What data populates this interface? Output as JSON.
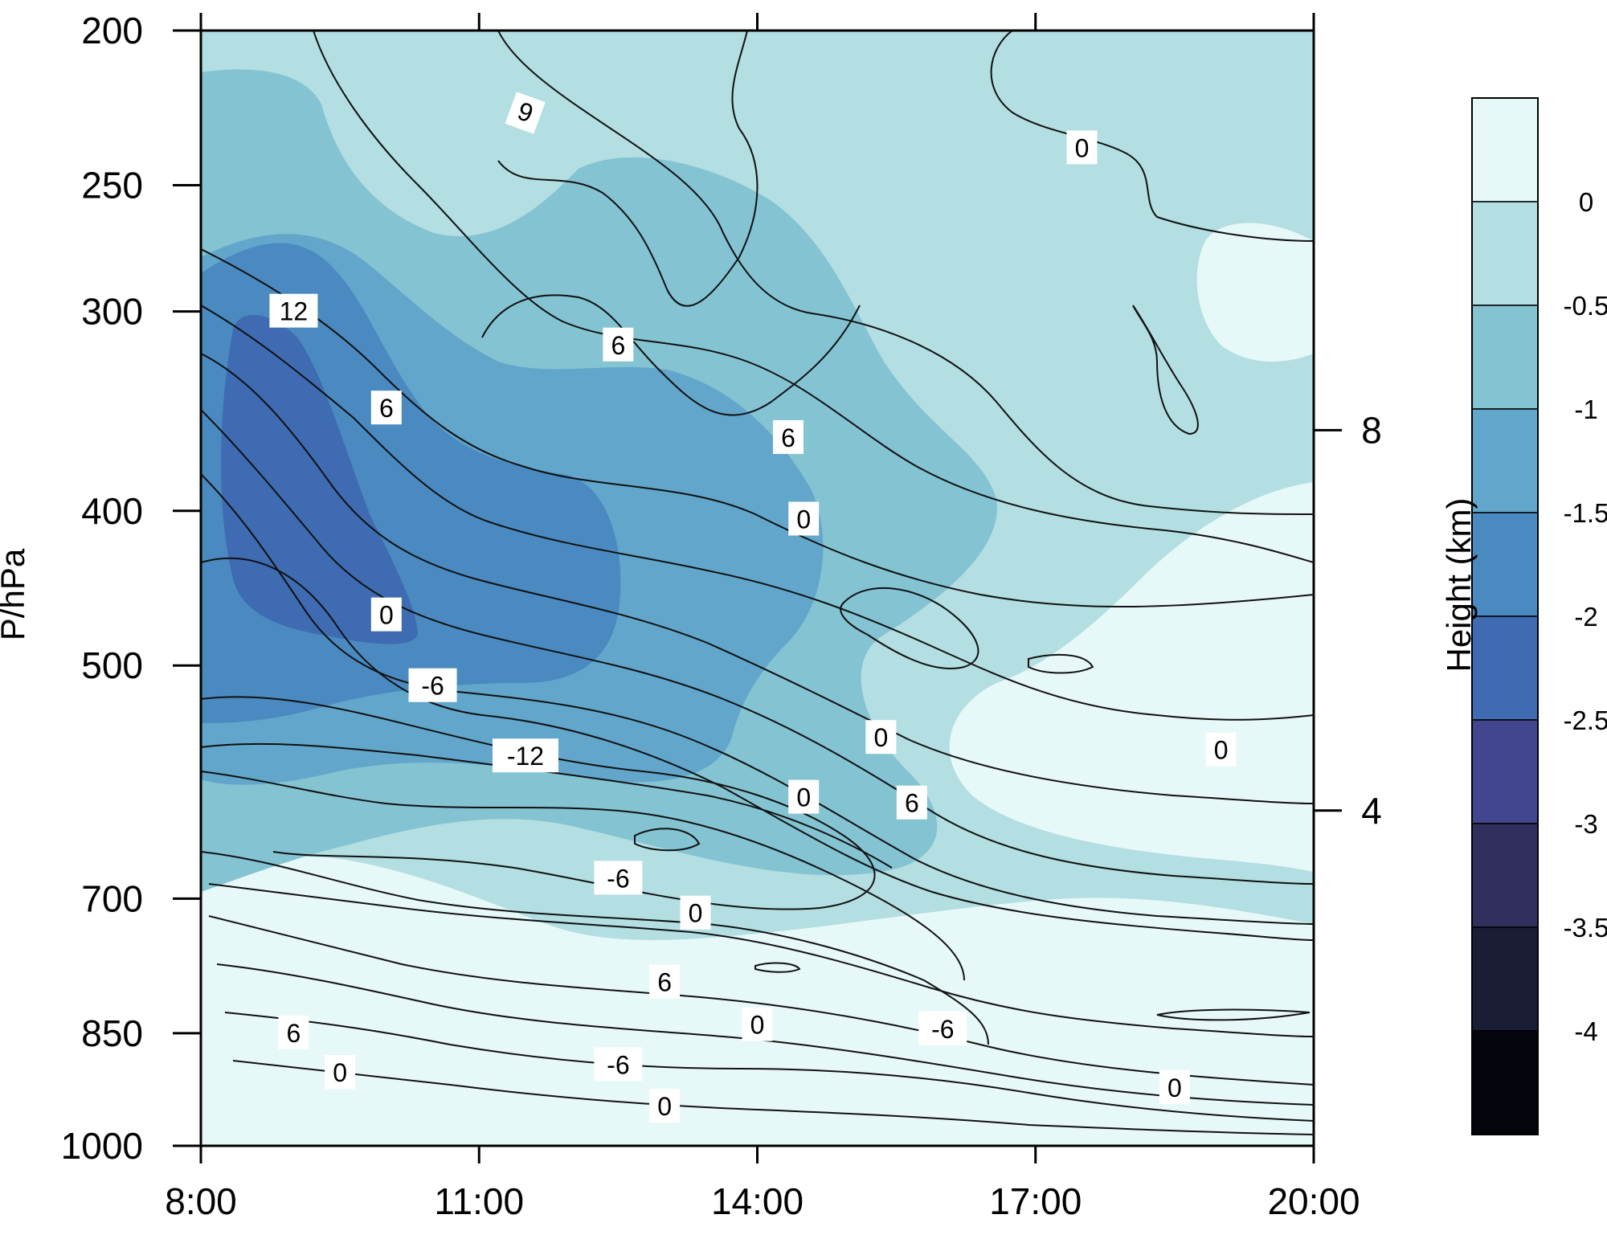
{
  "chart_data": {
    "type": "contour",
    "description_fields": {
      "filled_variable": "height anomaly",
      "contour_variable": "line contours labeled"
    },
    "x": {
      "label": "",
      "ticks": [
        "8:00",
        "11:00",
        "14:00",
        "17:00",
        "20:00"
      ],
      "range": [
        "8:00",
        "20:00"
      ]
    },
    "y_left": {
      "label": "P/hPa",
      "ticks": [
        200,
        250,
        300,
        400,
        500,
        700,
        850,
        1000
      ],
      "range": [
        200,
        1000
      ],
      "scale": "log-pressure"
    },
    "y_right": {
      "label": "",
      "ticks": [
        8,
        4
      ]
    },
    "colorbar": {
      "label": "Height (km)",
      "levels": [
        0,
        -0.5,
        -1,
        -1.5,
        -2,
        -2.5,
        -3,
        -3.5,
        -4
      ],
      "colors": [
        "#e6f8f8",
        "#b3dee2",
        "#84c3d2",
        "#62a6cb",
        "#4a8ac0",
        "#3e6bb1",
        "#41468f",
        "#302f5e",
        "#1b1c36",
        "#04050c"
      ]
    },
    "filled_regions": [
      {
        "level": 0,
        "region": "lower-left bands near 700–1000 hPa, right side 500–650 hPa"
      },
      {
        "level": -0.5,
        "region": "upper-right 200–500 hPa, middle 600–700 hPa"
      },
      {
        "level": -1,
        "region": "upper-left to center 200–500 hPa"
      },
      {
        "level": -1.5,
        "region": "8:00–15:00, 280–650 hPa"
      },
      {
        "level": -2,
        "region": "8:00–13:00, 300–550 hPa"
      },
      {
        "level": -2.5,
        "region": "8:30–10:30, 330–470 hPa"
      }
    ],
    "contour_labels": [
      {
        "text": "6",
        "x": "11:30",
        "y": 225,
        "rotation": 200
      },
      {
        "text": "0",
        "x": "17:30",
        "y": 237
      },
      {
        "text": "12",
        "x": "9:00",
        "y": 300
      },
      {
        "text": "6",
        "x": "12:30",
        "y": 315
      },
      {
        "text": "6",
        "x": "10:00",
        "y": 345
      },
      {
        "text": "6",
        "x": "14:20",
        "y": 360
      },
      {
        "text": "0",
        "x": "14:30",
        "y": 405
      },
      {
        "text": "0",
        "x": "10:00",
        "y": 465
      },
      {
        "text": "-6",
        "x": "10:30",
        "y": 515
      },
      {
        "text": "-12",
        "x": "11:30",
        "y": 570
      },
      {
        "text": "0",
        "x": "15:20",
        "y": 555
      },
      {
        "text": "0",
        "x": "19:00",
        "y": 565
      },
      {
        "text": "6",
        "x": "15:40",
        "y": 610
      },
      {
        "text": "0",
        "x": "14:30",
        "y": 605
      },
      {
        "text": "-6",
        "x": "12:30",
        "y": 680
      },
      {
        "text": "0",
        "x": "13:20",
        "y": 715
      },
      {
        "text": "6",
        "x": "13:00",
        "y": 790
      },
      {
        "text": "0",
        "x": "14:00",
        "y": 840
      },
      {
        "text": "-6",
        "x": "16:00",
        "y": 845
      },
      {
        "text": "6",
        "x": "9:00",
        "y": 850
      },
      {
        "text": "0",
        "x": "9:30",
        "y": 900
      },
      {
        "text": "-6",
        "x": "12:30",
        "y": 890
      },
      {
        "text": "0",
        "x": "18:30",
        "y": 920
      },
      {
        "text": "0",
        "x": "13:00",
        "y": 945
      }
    ]
  }
}
